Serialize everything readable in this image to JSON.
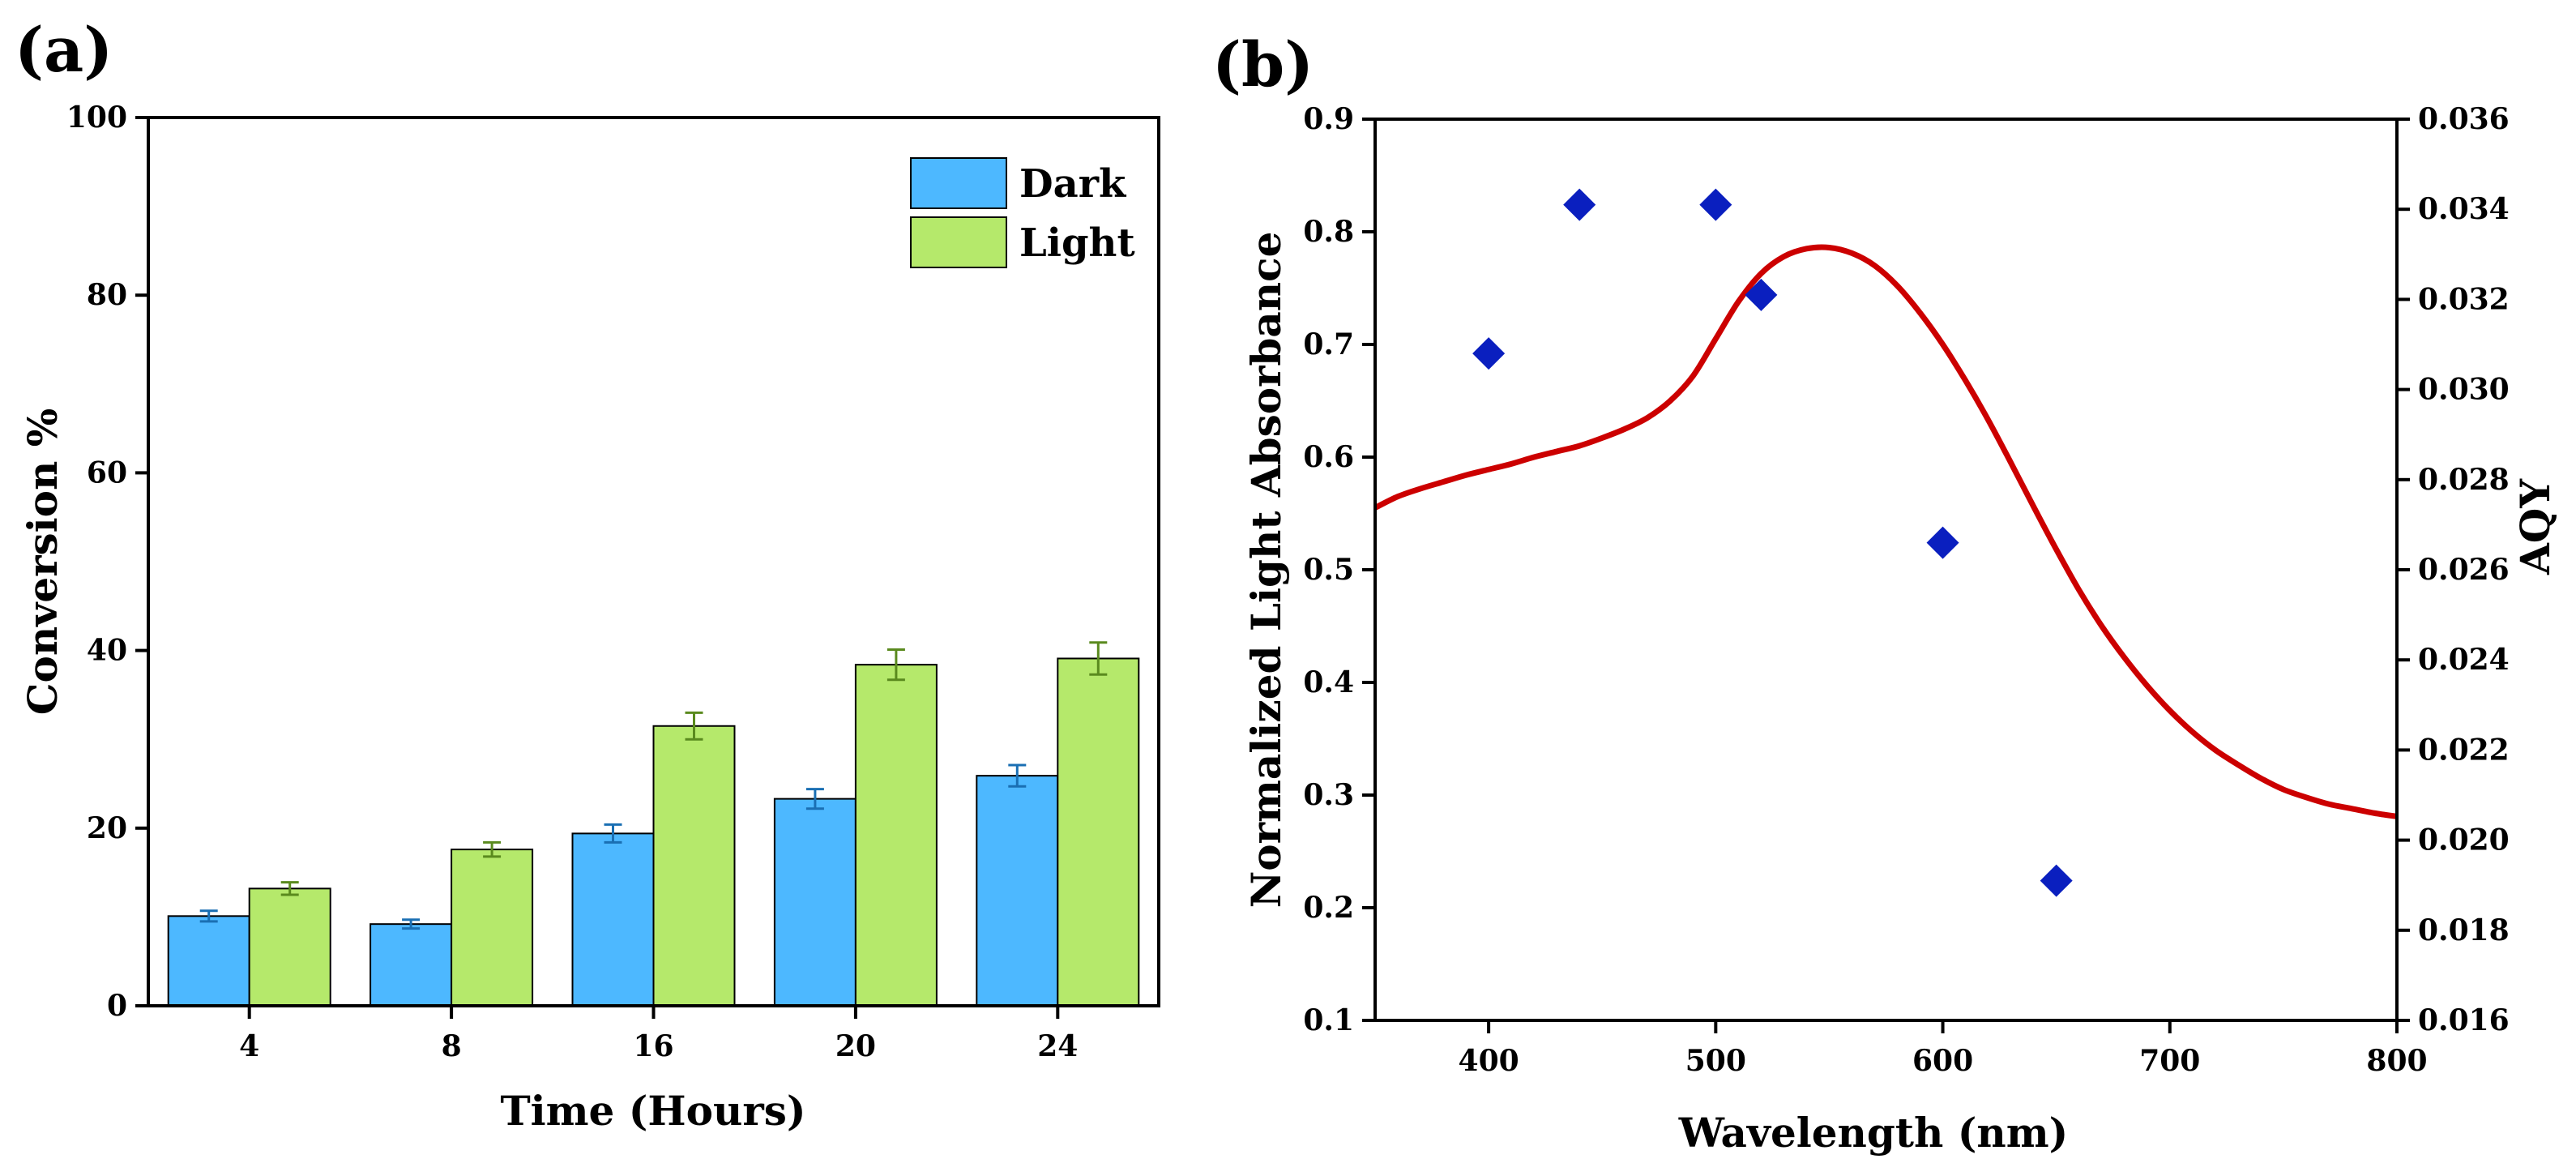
{
  "chart_data": [
    {
      "panel_label": "(a)",
      "type": "bar",
      "categories": [
        "4",
        "8",
        "16",
        "20",
        "24"
      ],
      "series": [
        {
          "name": "Dark",
          "color": "#4db8ff",
          "error_color": "#1a6fb3",
          "values": [
            10.1,
            9.2,
            19.4,
            23.3,
            25.9
          ],
          "errors": [
            0.6,
            0.5,
            1.0,
            1.1,
            1.2
          ]
        },
        {
          "name": "Light",
          "color": "#b5e96b",
          "error_color": "#5a8a1e",
          "values": [
            13.2,
            17.6,
            31.5,
            38.4,
            39.1
          ],
          "errors": [
            0.7,
            0.8,
            1.5,
            1.7,
            1.8
          ]
        }
      ],
      "xlabel": "Time (Hours)",
      "ylabel": "Conversion %",
      "ylim": [
        0,
        100
      ],
      "yticks": [
        "0",
        "20",
        "40",
        "60",
        "80",
        "100"
      ],
      "legend_position": "top-right"
    },
    {
      "panel_label": "(b)",
      "type": "line+scatter",
      "xlabel": "Wavelength (nm)",
      "ylabel_left": "Normalized Light Absorbance",
      "ylabel_right": "AQY",
      "xlim": [
        350,
        800
      ],
      "ylim_left": [
        0.1,
        0.9
      ],
      "ylim_right": [
        0.016,
        0.036
      ],
      "xticks": [
        "400",
        "500",
        "600",
        "700",
        "800"
      ],
      "yticks_left": [
        "0.1",
        "0.2",
        "0.3",
        "0.4",
        "0.5",
        "0.6",
        "0.7",
        "0.8",
        "0.9"
      ],
      "yticks_right": [
        "0.016",
        "0.018",
        "0.020",
        "0.022",
        "0.024",
        "0.026",
        "0.028",
        "0.030",
        "0.032",
        "0.034",
        "0.036"
      ],
      "line": {
        "name": "Normalized Light Absorbance",
        "color": "#cc0000",
        "x": [
          350,
          360,
          370,
          380,
          390,
          400,
          410,
          420,
          430,
          440,
          450,
          460,
          470,
          480,
          490,
          500,
          510,
          520,
          530,
          540,
          550,
          560,
          570,
          580,
          590,
          600,
          610,
          620,
          630,
          640,
          650,
          660,
          670,
          680,
          690,
          700,
          710,
          720,
          730,
          740,
          750,
          760,
          770,
          780,
          790,
          800
        ],
        "y": [
          0.555,
          0.565,
          0.572,
          0.578,
          0.584,
          0.589,
          0.594,
          0.6,
          0.605,
          0.61,
          0.617,
          0.625,
          0.635,
          0.65,
          0.672,
          0.705,
          0.738,
          0.763,
          0.778,
          0.785,
          0.786,
          0.781,
          0.77,
          0.752,
          0.728,
          0.7,
          0.668,
          0.633,
          0.595,
          0.556,
          0.518,
          0.482,
          0.45,
          0.422,
          0.397,
          0.375,
          0.356,
          0.34,
          0.327,
          0.315,
          0.305,
          0.298,
          0.292,
          0.288,
          0.284,
          0.281
        ]
      },
      "scatter": {
        "name": "AQY",
        "color": "#0a1fbf",
        "x": [
          400,
          440,
          500,
          520,
          600,
          650
        ],
        "y": [
          0.0308,
          0.0341,
          0.0341,
          0.0321,
          0.0266,
          0.0191
        ]
      }
    }
  ]
}
